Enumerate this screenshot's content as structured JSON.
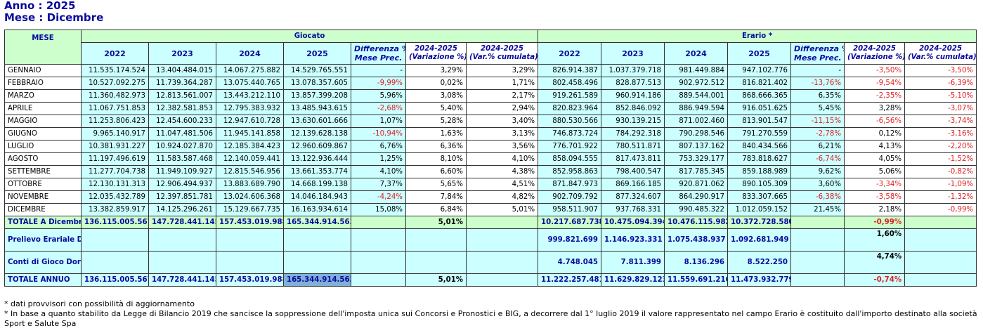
{
  "header": {
    "anno": "Anno : 2025",
    "mese": "Mese : Dicembre"
  },
  "table": {
    "col_mese": "MESE",
    "group_giocato": "Giocato",
    "group_erario": "Erario *",
    "years": [
      "2022",
      "2023",
      "2024",
      "2025"
    ],
    "diff_label": [
      "Differenza %",
      "Mese Prec."
    ],
    "var_label": [
      "2024-2025",
      "(Variazione %)"
    ],
    "cum_label": [
      "2024-2025",
      "(Var.% cumulata)"
    ],
    "rows": [
      {
        "mese": "GENNAIO",
        "g": [
          "11.535.174.524",
          "13.404.484.015",
          "14.067.275.882",
          "14.529.765.551"
        ],
        "g_diff": "-",
        "g_var": "3,29%",
        "g_cum": "3,29%",
        "e": [
          "826.914.387",
          "1.037.379.718",
          "981.449.884",
          "947.102.776"
        ],
        "e_diff": "-",
        "e_var": "-3,50%",
        "e_cum": "-3,50%"
      },
      {
        "mese": "FEBBRAIO",
        "g": [
          "10.527.092.275",
          "11.739.364.287",
          "13.075.440.765",
          "13.078.357.605"
        ],
        "g_diff": "-9,99%",
        "g_var": "0,02%",
        "g_cum": "1,71%",
        "e": [
          "802.458.496",
          "828.877.513",
          "902.972.512",
          "816.821.402"
        ],
        "e_diff": "-13,76%",
        "e_var": "-9,54%",
        "e_cum": "-6,39%"
      },
      {
        "mese": "MARZO",
        "g": [
          "11.360.482.973",
          "12.813.561.007",
          "13.443.212.110",
          "13.857.399.208"
        ],
        "g_diff": "5,96%",
        "g_var": "3,08%",
        "g_cum": "2,17%",
        "e": [
          "919.261.589",
          "960.914.186",
          "889.544.001",
          "868.666.365"
        ],
        "e_diff": "6,35%",
        "e_var": "-2,35%",
        "e_cum": "-5,10%"
      },
      {
        "mese": "APRILE",
        "g": [
          "11.067.751.853",
          "12.382.581.853",
          "12.795.383.932",
          "13.485.943.615"
        ],
        "g_diff": "-2,68%",
        "g_var": "5,40%",
        "g_cum": "2,94%",
        "e": [
          "820.823.964",
          "852.846.092",
          "886.949.594",
          "916.051.625"
        ],
        "e_diff": "5,45%",
        "e_var": "3,28%",
        "e_cum": "-3,07%"
      },
      {
        "mese": "MAGGIO",
        "g": [
          "11.253.806.423",
          "12.454.600.233",
          "12.947.610.728",
          "13.630.601.666"
        ],
        "g_diff": "1,07%",
        "g_var": "5,28%",
        "g_cum": "3,40%",
        "e": [
          "880.530.566",
          "930.139.215",
          "871.002.460",
          "813.901.547"
        ],
        "e_diff": "-11,15%",
        "e_var": "-6,56%",
        "e_cum": "-3,74%"
      },
      {
        "mese": "GIUGNO",
        "g": [
          "9.965.140.917",
          "11.047.481.506",
          "11.945.141.858",
          "12.139.628.138"
        ],
        "g_diff": "-10,94%",
        "g_var": "1,63%",
        "g_cum": "3,13%",
        "e": [
          "746.873.724",
          "784.292.318",
          "790.298.546",
          "791.270.559"
        ],
        "e_diff": "-2,78%",
        "e_var": "0,12%",
        "e_cum": "-3,16%"
      },
      {
        "mese": "LUGLIO",
        "g": [
          "10.381.931.227",
          "10.924.027.870",
          "12.185.384.423",
          "12.960.609.867"
        ],
        "g_diff": "6,76%",
        "g_var": "6,36%",
        "g_cum": "3,56%",
        "e": [
          "776.701.922",
          "780.511.871",
          "807.137.162",
          "840.434.566"
        ],
        "e_diff": "6,21%",
        "e_var": "4,13%",
        "e_cum": "-2,20%"
      },
      {
        "mese": "AGOSTO",
        "g": [
          "11.197.496.619",
          "11.583.587.468",
          "12.140.059.441",
          "13.122.936.444"
        ],
        "g_diff": "1,25%",
        "g_var": "8,10%",
        "g_cum": "4,10%",
        "e": [
          "858.094.555",
          "817.473.811",
          "753.329.177",
          "783.818.627"
        ],
        "e_diff": "-6,74%",
        "e_var": "4,05%",
        "e_cum": "-1,52%"
      },
      {
        "mese": "SETTEMBRE",
        "g": [
          "11.277.704.738",
          "11.949.109.927",
          "12.815.546.956",
          "13.661.353.774"
        ],
        "g_diff": "4,10%",
        "g_var": "6,60%",
        "g_cum": "4,38%",
        "e": [
          "852.958.863",
          "798.400.547",
          "817.785.345",
          "859.188.989"
        ],
        "e_diff": "9,62%",
        "e_var": "5,06%",
        "e_cum": "-0,82%"
      },
      {
        "mese": "OTTOBRE",
        "g": [
          "12.130.131.313",
          "12.906.494.937",
          "13.883.689.790",
          "14.668.199.138"
        ],
        "g_diff": "7,37%",
        "g_var": "5,65%",
        "g_cum": "4,51%",
        "e": [
          "871.847.973",
          "869.166.185",
          "920.871.062",
          "890.105.309"
        ],
        "e_diff": "3,60%",
        "e_var": "-3,34%",
        "e_cum": "-1,09%"
      },
      {
        "mese": "NOVEMBRE",
        "g": [
          "12.035.432.789",
          "12.397.851.781",
          "13.024.606.368",
          "14.046.184.943"
        ],
        "g_diff": "-4,24%",
        "g_var": "7,84%",
        "g_cum": "4,82%",
        "e": [
          "902.709.792",
          "877.324.607",
          "864.290.917",
          "833.307.665"
        ],
        "e_diff": "-6,38%",
        "e_var": "-3,58%",
        "e_cum": "-1,32%"
      },
      {
        "mese": "DICEMBRE",
        "g": [
          "13.382.859.917",
          "14.125.296.261",
          "15.129.667.735",
          "16.163.934.614"
        ],
        "g_diff": "15,08%",
        "g_var": "6,84%",
        "g_cum": "5,01%",
        "e": [
          "958.511.907",
          "937.768.331",
          "990.485.322",
          "1.012.059.152"
        ],
        "e_diff": "21,45%",
        "e_var": "2,18%",
        "e_cum": "-0,99%"
      }
    ],
    "totale_dic": {
      "label": "TOTALE A Dicembre",
      "g": [
        "136.115.005.567",
        "147.728.441.145",
        "157.453.019.988",
        "165.344.914.563"
      ],
      "g_var": "5,01%",
      "e": [
        "10.217.687.738",
        "10.475.094.394",
        "10.476.115.982",
        "10.372.728.580"
      ],
      "e_var": "-0,99%"
    },
    "prelievo": {
      "label": "Prelievo Erariale DL 50/2017",
      "e": [
        "999.821.699",
        "1.146.923.331",
        "1.075.438.937",
        "1.092.681.949"
      ],
      "e_var": "1,60%"
    },
    "conti": {
      "label": "Conti di Gioco Dormienti",
      "e": [
        "4.748.045",
        "7.811.399",
        "8.136.296",
        "8.522.250"
      ],
      "e_var": "4,74%"
    },
    "totale_annuo": {
      "label": "TOTALE ANNUO",
      "g": [
        "136.115.005.567",
        "147.728.441.145",
        "157.453.019.988",
        "165.344.914.563"
      ],
      "g_var": "5,01%",
      "e": [
        "11.222.257.481",
        "11.629.829.123",
        "11.559.691.216",
        "11.473.932.779"
      ],
      "e_var": "-0,74%"
    }
  },
  "notes": [
    "* dati provvisori con possibilità di aggiornamento",
    "* In base a quanto stabilito da Legge di Bilancio 2019 che sancisce la soppressione dell'imposta unica sui Concorsi e Pronostici e BIG, a decorrere dal 1° luglio 2019 il valore rappresentato nel campo Erario è costituito dall'importo destinato alla società Sport e Salute Spa"
  ],
  "colors": {
    "header_green": "#ccffcc",
    "cell_cyan": "#ccffff",
    "title_blue": "#0a0a9e",
    "negative_red": "#e02020"
  }
}
